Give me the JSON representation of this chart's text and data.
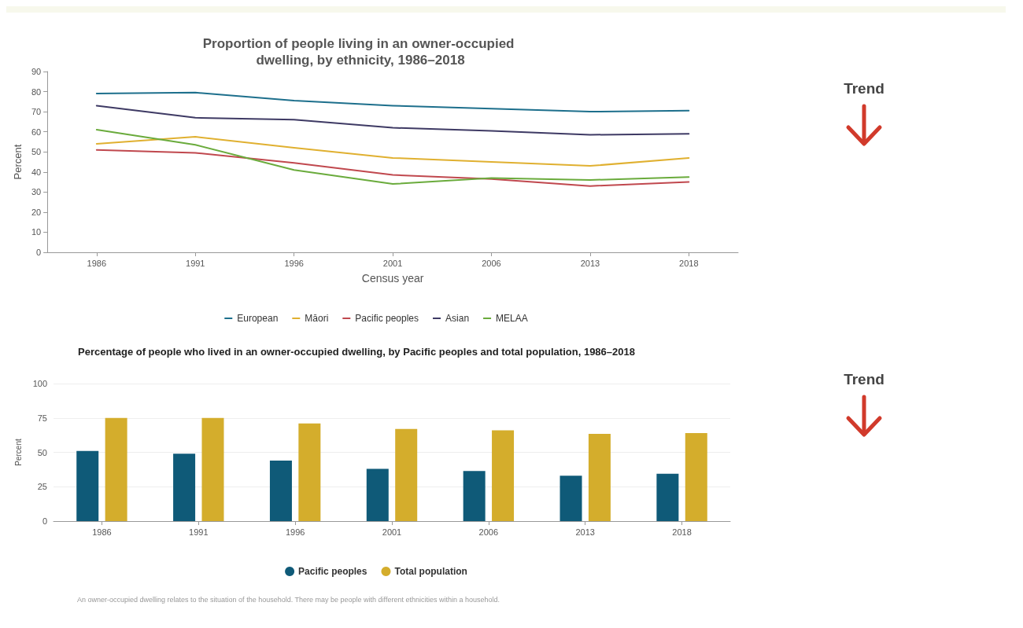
{
  "chart_data": [
    {
      "type": "line",
      "title": "Proportion of people living in an owner-occupied dwelling, by ethnicity, 1986–2018",
      "xlabel": "Census year",
      "ylabel": "Percent",
      "categories": [
        "1986",
        "1991",
        "1996",
        "2001",
        "2006",
        "2013",
        "2018"
      ],
      "series": [
        {
          "name": "European",
          "color": "#1d6f8c",
          "values": [
            79,
            79.5,
            75.5,
            73,
            71.5,
            70,
            70.5
          ]
        },
        {
          "name": "Māori",
          "color": "#e0b030",
          "values": [
            54,
            57.5,
            52,
            47,
            45,
            43,
            47
          ]
        },
        {
          "name": "Pacific peoples",
          "color": "#c0484e",
          "values": [
            51,
            49.5,
            44.5,
            38.5,
            36.5,
            33,
            35
          ]
        },
        {
          "name": "Asian",
          "color": "#3e3a64",
          "values": [
            73,
            67,
            66,
            62,
            60.5,
            58.5,
            59
          ]
        },
        {
          "name": "MELAA",
          "color": "#6aab3c",
          "values": [
            61,
            53.5,
            41,
            34,
            37,
            36,
            37.5
          ]
        }
      ],
      "ylim": [
        0,
        90
      ],
      "yticks": [
        0,
        10,
        20,
        30,
        40,
        50,
        60,
        70,
        80,
        90
      ],
      "grid": false,
      "legend": "bottom",
      "marker": "none",
      "line_style": "solid",
      "annotations": [
        "Trend"
      ]
    },
    {
      "type": "bar",
      "title": "Percentage of people who lived in an owner-occupied dwelling, by Pacific peoples and total population, 1986–2018",
      "ylabel": "Percent",
      "categories": [
        "1986",
        "1991",
        "1996",
        "2001",
        "2006",
        "2013",
        "2018"
      ],
      "series": [
        {
          "name": "Pacific peoples",
          "color": "#0f5a78",
          "values": [
            51,
            49,
            44,
            38,
            36.5,
            33,
            34.5
          ]
        },
        {
          "name": "Total population",
          "color": "#d4ad2c",
          "values": [
            75,
            75,
            71,
            67,
            66,
            63.5,
            64
          ]
        }
      ],
      "ylim": [
        0,
        100
      ],
      "yticks": [
        0,
        25,
        50,
        75,
        100
      ],
      "grid": "y",
      "legend": "bottom",
      "annotations": [
        "Trend",
        "An owner-occupied dwelling relates to the situation of the household. There may be people with different ethnicities within a household."
      ]
    }
  ]
}
